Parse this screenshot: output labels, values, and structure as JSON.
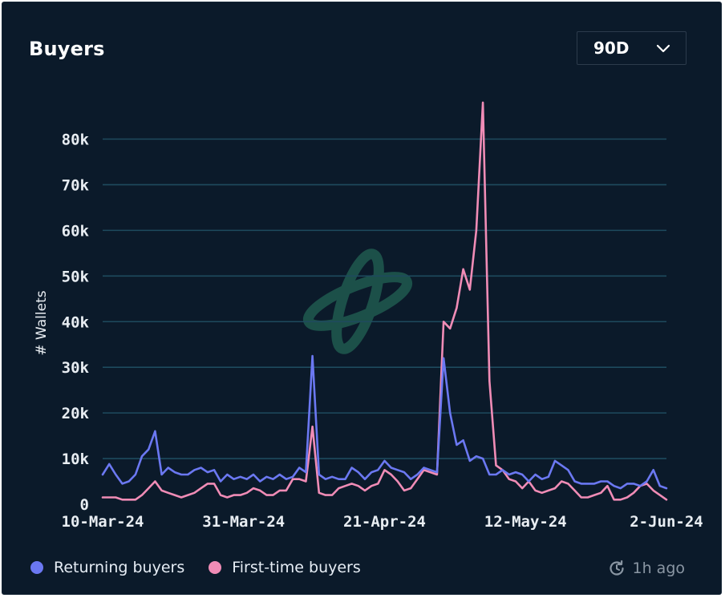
{
  "header": {
    "title": "Buyers",
    "range_label": "90D"
  },
  "footer": {
    "updated_label": "1h ago"
  },
  "colors": {
    "returning": "#6b78f2",
    "first_time": "#f08cb6",
    "grid": "#1e4a5e",
    "axis_text": "#e8edf2",
    "background": "#0b1a2a"
  },
  "chart_data": {
    "type": "line",
    "title": "Buyers",
    "xlabel": "",
    "ylabel": "# Wallets",
    "ylim": [
      0,
      80000
    ],
    "yticks": [
      0,
      10000,
      20000,
      30000,
      40000,
      50000,
      60000,
      70000,
      80000
    ],
    "ytick_labels": [
      "0",
      "10k",
      "20k",
      "30k",
      "40k",
      "50k",
      "60k",
      "70k",
      "80k"
    ],
    "x_start_day": 0,
    "x_end_day": 84,
    "xticks": [
      {
        "day": 0,
        "label": "10-Mar-24"
      },
      {
        "day": 21,
        "label": "31-Mar-24"
      },
      {
        "day": 42,
        "label": "21-Apr-24"
      },
      {
        "day": 63,
        "label": "12-May-24"
      },
      {
        "day": 84,
        "label": "2-Jun-24"
      }
    ],
    "legend_position": "bottom-left",
    "series": [
      {
        "name": "Returning buyers",
        "color": "#6b78f2",
        "values": [
          6500,
          8800,
          6500,
          4500,
          5000,
          6500,
          10500,
          12000,
          16000,
          6500,
          8000,
          7000,
          6500,
          6500,
          7500,
          8000,
          7000,
          7500,
          5000,
          6500,
          5500,
          6000,
          5500,
          6500,
          5000,
          6000,
          5500,
          6500,
          5500,
          6000,
          8000,
          7000,
          32500,
          6500,
          5500,
          6000,
          5500,
          5500,
          8000,
          7000,
          5500,
          7000,
          7500,
          9500,
          8000,
          7500,
          7000,
          5500,
          6500,
          8000,
          7500,
          7000,
          32000,
          20000,
          13000,
          14000,
          9500,
          10500,
          10000,
          6500,
          6500,
          7500,
          6500,
          7000,
          6500,
          5000,
          6500,
          5500,
          6000,
          9500,
          8500,
          7500,
          5000,
          4500,
          4500,
          4500,
          5000,
          5000,
          4000,
          3500,
          4500,
          4500,
          4000,
          5000,
          7500,
          4000,
          3500
        ]
      },
      {
        "name": "First-time buyers",
        "color": "#f08cb6",
        "values": [
          1500,
          1500,
          1500,
          1000,
          1000,
          1000,
          2000,
          3500,
          5000,
          3000,
          2500,
          2000,
          1500,
          2000,
          2500,
          3500,
          4500,
          4500,
          2000,
          1500,
          2000,
          2000,
          2500,
          3500,
          3000,
          2000,
          2000,
          3000,
          3000,
          5500,
          5500,
          5000,
          17000,
          2500,
          2000,
          2000,
          3500,
          4000,
          4500,
          4000,
          3000,
          4000,
          4500,
          7500,
          6500,
          5000,
          3000,
          3500,
          5500,
          7500,
          7000,
          6500,
          40000,
          38500,
          43000,
          51500,
          47000,
          60000,
          88000,
          27000,
          8500,
          7500,
          5500,
          5000,
          3500,
          5000,
          3000,
          2500,
          3000,
          3500,
          5000,
          4500,
          3000,
          1500,
          1500,
          2000,
          2500,
          4000,
          1000,
          1000,
          1500,
          2500,
          4000,
          4500,
          3000,
          2000,
          1000
        ]
      }
    ]
  }
}
